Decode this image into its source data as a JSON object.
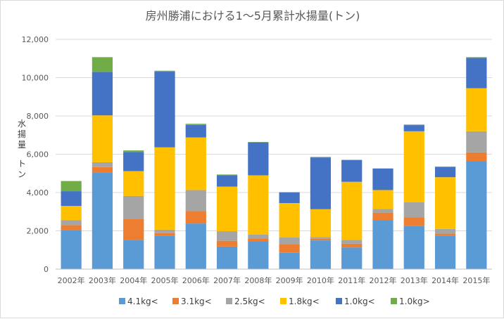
{
  "chart_data": {
    "type": "bar",
    "stacked": true,
    "title": "房州勝浦における1～5月累計水揚量(トン)",
    "ylabel": "水揚量　トン",
    "xlabel": "",
    "ylim": [
      0,
      12000
    ],
    "yticks": [
      0,
      2000,
      4000,
      6000,
      8000,
      10000,
      12000
    ],
    "ytick_labels": [
      "0",
      "2,000",
      "4,000",
      "6,000",
      "8,000",
      "10,000",
      "12,000"
    ],
    "grid": true,
    "legend_position": "bottom",
    "categories": [
      "2002年",
      "2003年",
      "2004年",
      "2005年",
      "2006年",
      "2007年",
      "2008年",
      "2009年",
      "2010年",
      "2011年",
      "2012年",
      "2013年",
      "2014年",
      "2015年"
    ],
    "series": [
      {
        "name": "4.1kg<",
        "color": "#5b9bd5",
        "values": [
          2050,
          5050,
          1520,
          1750,
          2380,
          1180,
          1450,
          850,
          1500,
          1130,
          2550,
          2250,
          1750,
          5650
        ]
      },
      {
        "name": "3.1kg<",
        "color": "#ed7d31",
        "values": [
          250,
          280,
          1100,
          130,
          650,
          300,
          150,
          450,
          80,
          200,
          400,
          450,
          100,
          450
        ]
      },
      {
        "name": "2.5kg<",
        "color": "#a5a5a5",
        "values": [
          250,
          250,
          1200,
          180,
          1100,
          500,
          200,
          350,
          100,
          200,
          200,
          800,
          250,
          1100
        ]
      },
      {
        "name": "1.8kg<",
        "color": "#ffc000",
        "values": [
          750,
          2450,
          1300,
          4300,
          2750,
          2330,
          3100,
          1800,
          1450,
          3030,
          980,
          3700,
          2700,
          2250
        ]
      },
      {
        "name": "1.0kg<",
        "color": "#4472c4",
        "values": [
          770,
          2270,
          1000,
          3950,
          650,
          600,
          1720,
          550,
          2700,
          1130,
          1120,
          320,
          530,
          1580
        ]
      },
      {
        "name": "1.0kg>",
        "color": "#70ad47",
        "values": [
          530,
          770,
          80,
          50,
          60,
          30,
          20,
          20,
          30,
          20,
          10,
          30,
          30,
          40
        ]
      }
    ]
  }
}
